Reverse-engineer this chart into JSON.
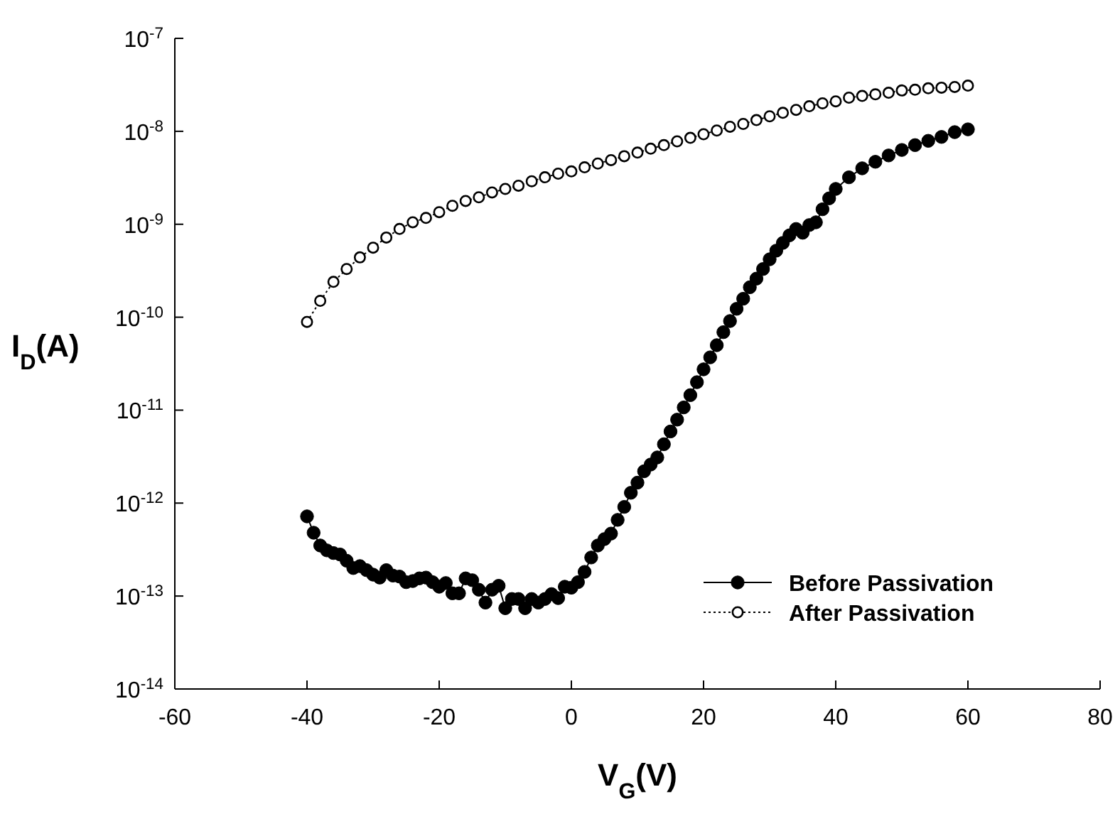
{
  "chart_data": {
    "type": "line",
    "xlabel": "V$_{G}$(V)",
    "ylabel": "I$_{D}$(A)",
    "log": "y",
    "xlim": [
      -60,
      80
    ],
    "xticks": [
      -60,
      -40,
      -20,
      0,
      20,
      40,
      60,
      80
    ],
    "ylim": [
      1e-14,
      1e-07
    ],
    "yticks": [
      {
        "value": 1e-14,
        "label": "10$^{-14}$"
      },
      {
        "value": 1e-13,
        "label": "10$^{-13}$"
      },
      {
        "value": 1e-12,
        "label": "10$^{-12}$"
      },
      {
        "value": 1e-11,
        "label": "10$^{-11}$"
      },
      {
        "value": 1e-10,
        "label": "10$^{-10}$"
      },
      {
        "value": 1e-09,
        "label": "10$^{-9}$"
      },
      {
        "value": 1e-08,
        "label": "10$^{-8}$"
      },
      {
        "value": 1e-07,
        "label": "10$^{-7}$"
      }
    ],
    "grid": false,
    "legend": "bottom right",
    "marker": "circle",
    "series": [
      {
        "name": "Before Passivation",
        "color": "#000000",
        "line_style": "solid",
        "x": [
          -40,
          -39,
          -38,
          -37,
          -36,
          -35,
          -34,
          -33,
          -32,
          -31,
          -30,
          -29,
          -28,
          -27,
          -26,
          -25,
          -24,
          -23,
          -22,
          -21,
          -20,
          -19,
          -18,
          -17,
          -16,
          -15,
          -14,
          -13,
          -12,
          -11,
          -10,
          -9,
          -8,
          -7,
          -6,
          -5,
          -4,
          -3,
          -2,
          -1,
          0,
          1,
          2,
          3,
          4,
          5,
          6,
          7,
          8,
          9,
          10,
          11,
          12,
          13,
          14,
          15,
          16,
          17,
          18,
          19,
          20,
          21,
          22,
          23,
          24,
          25,
          26,
          27,
          28,
          29,
          30,
          31,
          32,
          33,
          34,
          35,
          36,
          37,
          38,
          39,
          40,
          42,
          44,
          46,
          48,
          50,
          52,
          54,
          56,
          58,
          60
        ],
        "values": [
          7.2e-13,
          4.8e-13,
          3.5e-13,
          3.1e-13,
          2.9e-13,
          2.8e-13,
          2.4e-13,
          2e-13,
          2.1e-13,
          1.9e-13,
          1.7e-13,
          1.58e-13,
          1.9e-13,
          1.66e-13,
          1.62e-13,
          1.41e-13,
          1.45e-13,
          1.55e-13,
          1.58e-13,
          1.41e-13,
          1.26e-13,
          1.38e-13,
          1.07e-13,
          1.07e-13,
          1.55e-13,
          1.48e-13,
          1.17e-13,
          8.5e-14,
          1.17e-13,
          1.29e-13,
          7.4e-14,
          9.3e-14,
          9.3e-14,
          7.4e-14,
          9.3e-14,
          8.5e-14,
          9.3e-14,
          1.05e-13,
          9.5e-14,
          1.26e-13,
          1.23e-13,
          1.41e-13,
          1.82e-13,
          2.6e-13,
          3.5e-13,
          4.1e-13,
          4.7e-13,
          6.6e-13,
          9.1e-13,
          1.29e-12,
          1.66e-12,
          2.2e-12,
          2.6e-12,
          3.1e-12,
          4.3e-12,
          5.9e-12,
          7.9e-12,
          1.07e-11,
          1.45e-11,
          2e-11,
          2.75e-11,
          3.7e-11,
          5e-11,
          6.9e-11,
          9.1e-11,
          1.23e-10,
          1.58e-10,
          2.1e-10,
          2.6e-10,
          3.3e-10,
          4.2e-10,
          5.2e-10,
          6.3e-10,
          7.6e-10,
          8.9e-10,
          8.1e-10,
          9.8e-10,
          1.05e-09,
          1.45e-09,
          1.9e-09,
          2.4e-09,
          3.2e-09,
          4e-09,
          4.7e-09,
          5.5e-09,
          6.3e-09,
          7.1e-09,
          7.9e-09,
          8.7e-09,
          9.8e-09,
          1.05e-08
        ]
      },
      {
        "name": "After Passivation",
        "color": "#000000",
        "line_style": "dotted",
        "x": [
          -40,
          -38,
          -36,
          -34,
          -32,
          -30,
          -28,
          -26,
          -24,
          -22,
          -20,
          -18,
          -16,
          -14,
          -12,
          -10,
          -8,
          -6,
          -4,
          -2,
          0,
          2,
          4,
          6,
          8,
          10,
          12,
          14,
          16,
          18,
          20,
          22,
          24,
          26,
          28,
          30,
          32,
          34,
          36,
          38,
          40,
          42,
          44,
          46,
          48,
          50,
          52,
          54,
          56,
          58,
          60
        ],
        "values": [
          8.9e-11,
          1.5e-10,
          2.4e-10,
          3.3e-10,
          4.4e-10,
          5.6e-10,
          7.2e-10,
          8.9e-10,
          1.05e-09,
          1.17e-09,
          1.35e-09,
          1.58e-09,
          1.78e-09,
          1.95e-09,
          2.2e-09,
          2.4e-09,
          2.6e-09,
          2.9e-09,
          3.2e-09,
          3.5e-09,
          3.7e-09,
          4.1e-09,
          4.5e-09,
          4.9e-09,
          5.4e-09,
          5.9e-09,
          6.5e-09,
          7.1e-09,
          7.8e-09,
          8.5e-09,
          9.3e-09,
          1.02e-08,
          1.12e-08,
          1.2e-08,
          1.32e-08,
          1.45e-08,
          1.58e-08,
          1.7e-08,
          1.86e-08,
          2e-08,
          2.1e-08,
          2.3e-08,
          2.4e-08,
          2.5e-08,
          2.6e-08,
          2.75e-08,
          2.8e-08,
          2.9e-08,
          2.95e-08,
          3e-08,
          3.1e-08
        ]
      }
    ]
  }
}
